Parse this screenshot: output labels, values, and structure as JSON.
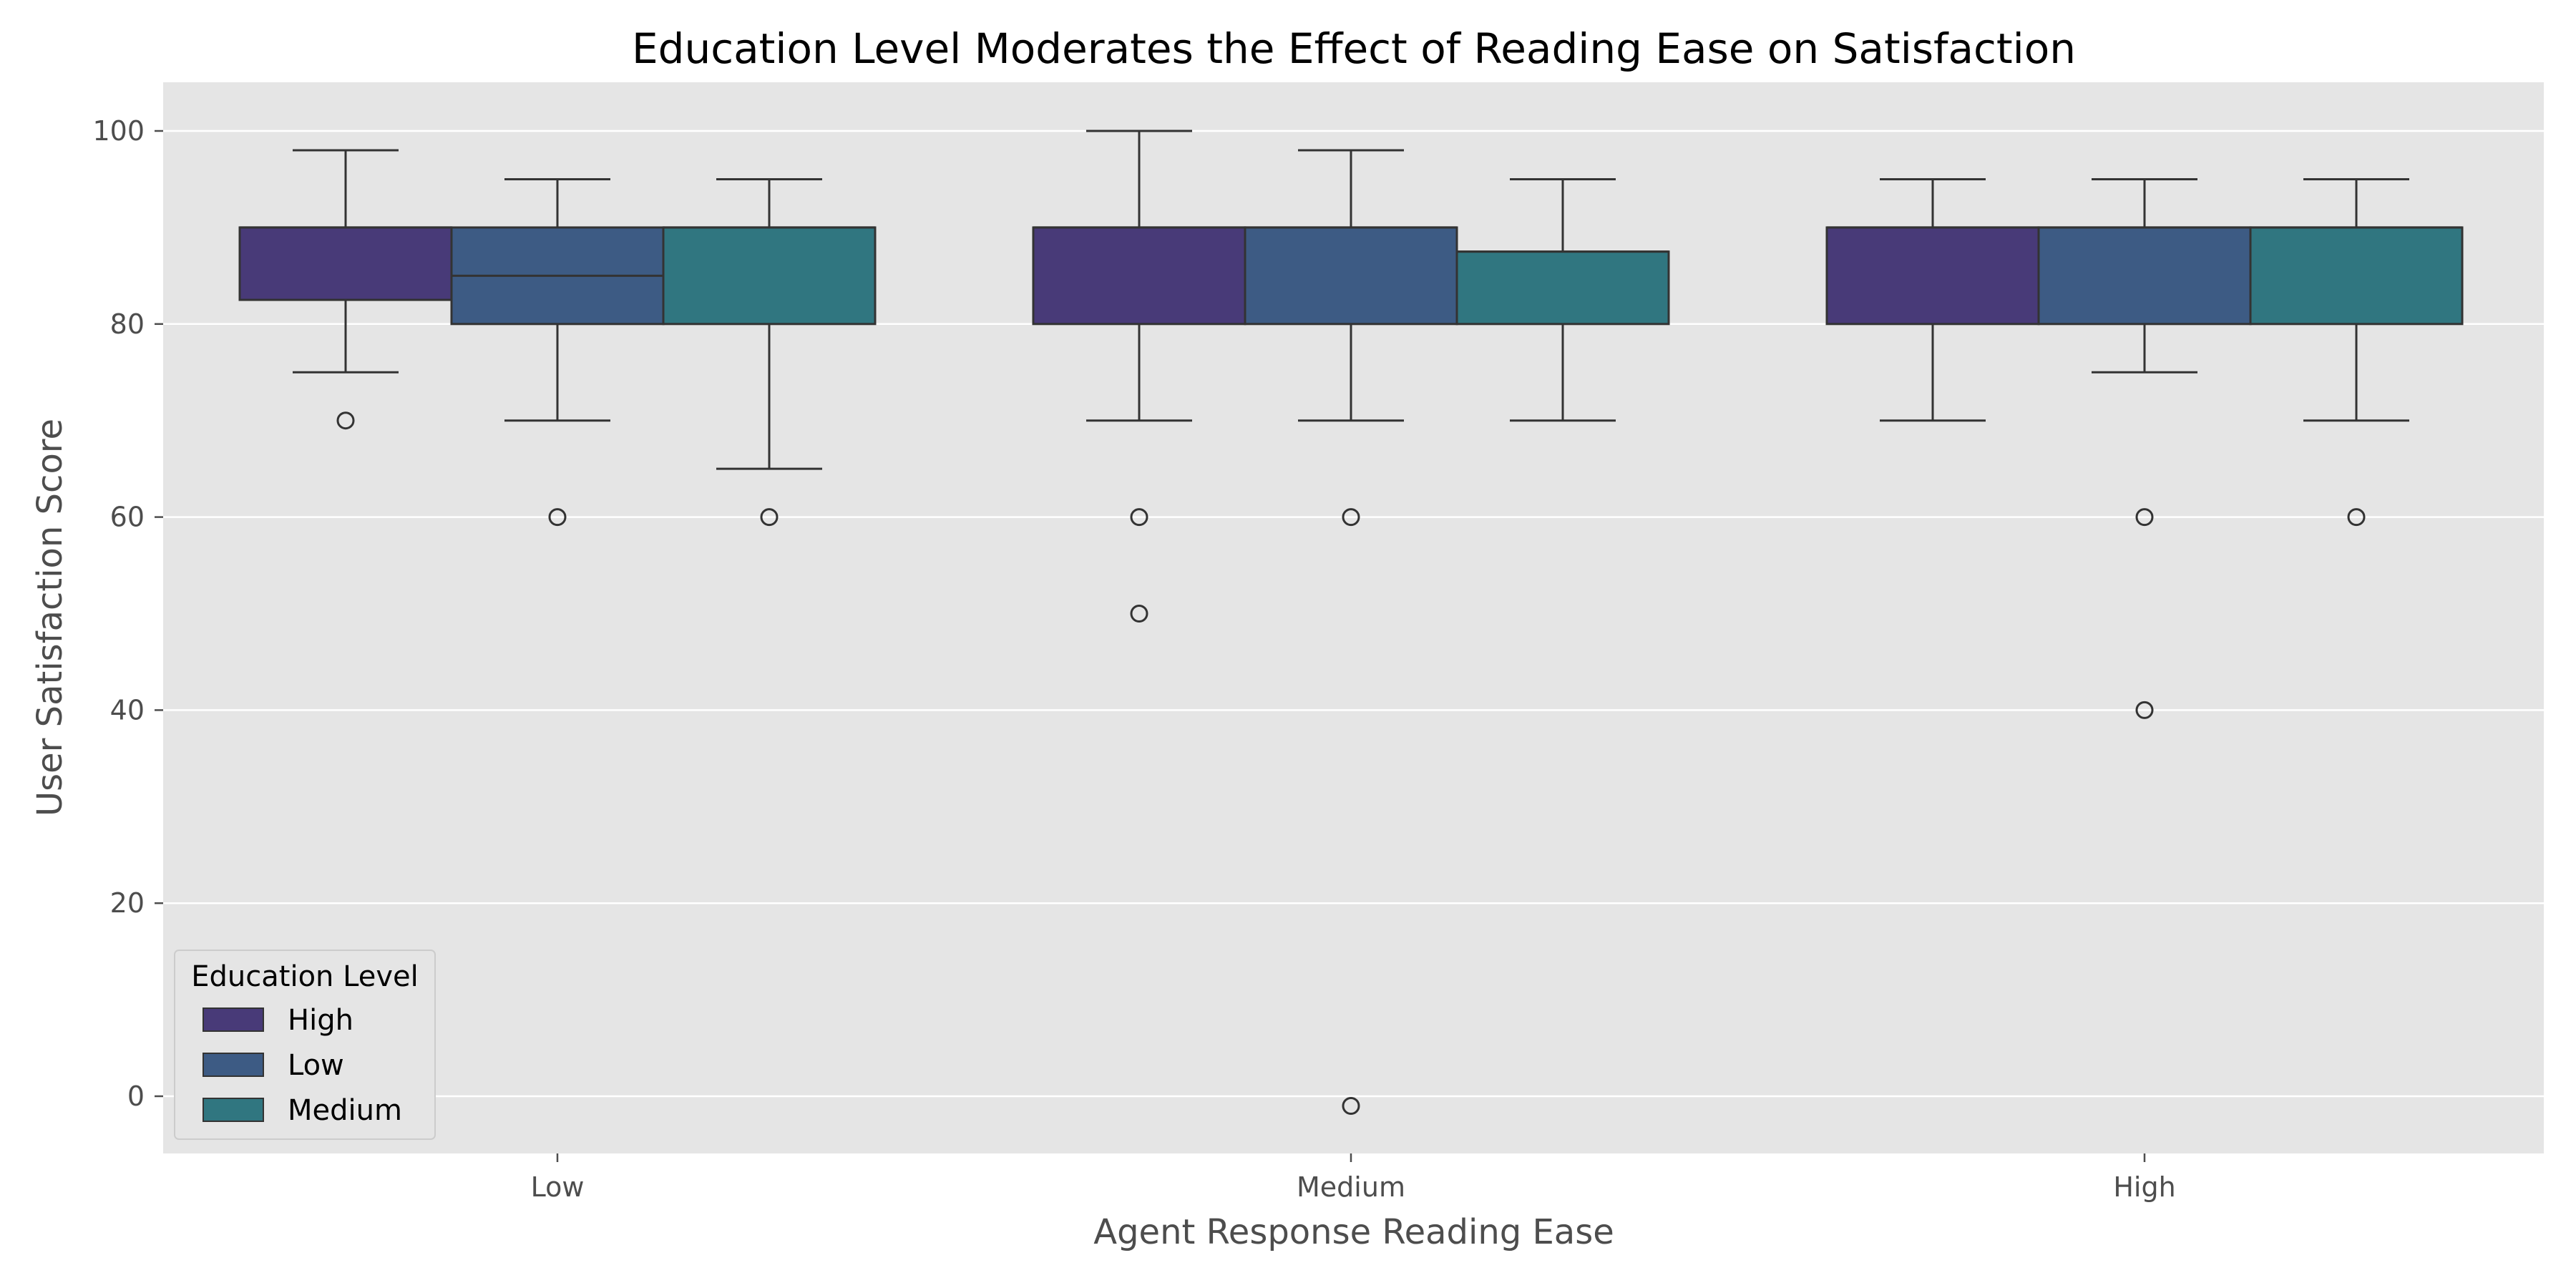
{
  "chart_data": {
    "type": "box",
    "title": "Education Level Moderates the Effect of Reading Ease on Satisfaction",
    "xlabel": "Agent Response Reading Ease",
    "ylabel": "User Satisfaction Score",
    "categories": [
      "Low",
      "Medium",
      "High"
    ],
    "yticks": [
      0,
      20,
      40,
      60,
      80,
      100
    ],
    "ylim": [
      -6,
      105
    ],
    "grid": true,
    "legend": {
      "title": "Education Level",
      "position": "lower-left"
    },
    "series": [
      {
        "name": "High",
        "color": "#483a78",
        "boxes": [
          {
            "q1": 82.5,
            "median": 90,
            "q3": 90,
            "whisker_low": 75,
            "whisker_high": 98,
            "outliers": [
              70
            ]
          },
          {
            "q1": 80,
            "median": 90,
            "q3": 90,
            "whisker_low": 70,
            "whisker_high": 100,
            "outliers": [
              60,
              50
            ]
          },
          {
            "q1": 80,
            "median": 90,
            "q3": 90,
            "whisker_low": 70,
            "whisker_high": 95,
            "outliers": []
          }
        ]
      },
      {
        "name": "Low",
        "color": "#3d5b84",
        "boxes": [
          {
            "q1": 80,
            "median": 85,
            "q3": 90,
            "whisker_low": 70,
            "whisker_high": 95,
            "outliers": [
              60
            ]
          },
          {
            "q1": 80,
            "median": 90,
            "q3": 90,
            "whisker_low": 70,
            "whisker_high": 98,
            "outliers": [
              60,
              -1
            ]
          },
          {
            "q1": 80,
            "median": 90,
            "q3": 90,
            "whisker_low": 75,
            "whisker_high": 95,
            "outliers": [
              60,
              40
            ]
          }
        ]
      },
      {
        "name": "Medium",
        "color": "#307680",
        "boxes": [
          {
            "q1": 80,
            "median": 90,
            "q3": 90,
            "whisker_low": 65,
            "whisker_high": 95,
            "outliers": [
              60
            ]
          },
          {
            "q1": 80,
            "median": 87.5,
            "q3": 87.5,
            "whisker_low": 70,
            "whisker_high": 95,
            "outliers": []
          },
          {
            "q1": 80,
            "median": 90,
            "q3": 90,
            "whisker_low": 70,
            "whisker_high": 95,
            "outliers": [
              60
            ]
          }
        ]
      }
    ]
  }
}
